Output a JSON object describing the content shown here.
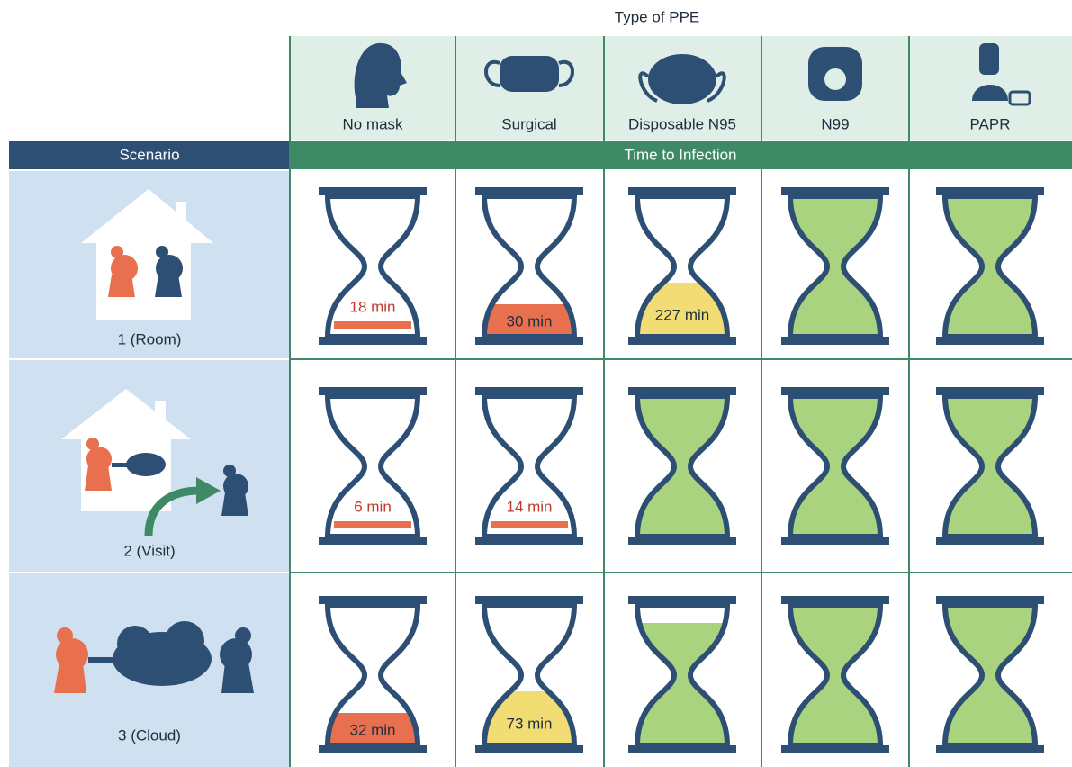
{
  "header": {
    "title": "Type of PPE",
    "columns": [
      "No mask",
      "Surgical",
      "Disposable N95",
      "N99",
      "PAPR"
    ]
  },
  "scenario_header": "Scenario",
  "time_header": "Time to Infection",
  "rows": [
    {
      "label": "1 (Room)",
      "times": [
        "18 min",
        "30 min",
        "227 min"
      ]
    },
    {
      "label": "2 (Visit)",
      "times": [
        "6 min",
        "14 min"
      ]
    },
    {
      "label": "3 (Cloud)",
      "times": [
        "32 min",
        "73 min"
      ]
    }
  ]
}
